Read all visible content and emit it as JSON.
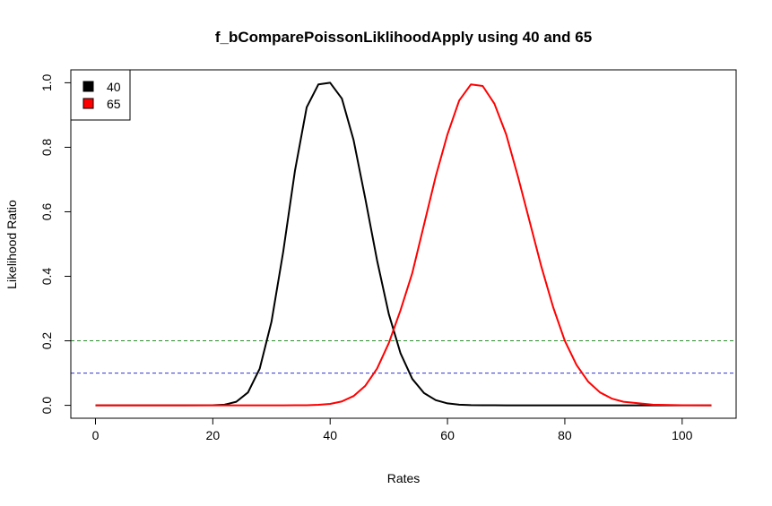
{
  "chart_data": {
    "type": "line",
    "title": "f_bComparePoissonLiklihoodApply using 40 and 65",
    "xlabel": "Rates",
    "ylabel": "Likelihood Ratio",
    "xlim": [
      -4.2,
      109.2
    ],
    "ylim": [
      -0.04,
      1.04
    ],
    "x_ticks": [
      0,
      20,
      40,
      60,
      80,
      100
    ],
    "y_ticks": [
      0.0,
      0.2,
      0.4,
      0.6,
      0.8,
      1.0
    ],
    "x_tick_labels": [
      "0",
      "20",
      "40",
      "60",
      "80",
      "100"
    ],
    "y_tick_labels": [
      "0.0",
      "0.2",
      "0.4",
      "0.6",
      "0.8",
      "1.0"
    ],
    "grid": false,
    "legend": {
      "position": "top-left",
      "entries": [
        {
          "label": "40",
          "color": "#000000"
        },
        {
          "label": "65",
          "color": "#ff0000"
        }
      ]
    },
    "x": [
      0,
      5,
      10,
      15,
      20,
      22,
      24,
      26,
      28,
      30,
      32,
      34,
      36,
      38,
      40,
      42,
      44,
      46,
      48,
      50,
      52,
      54,
      56,
      58,
      60,
      62,
      64,
      66,
      68,
      70,
      72,
      74,
      76,
      78,
      80,
      82,
      84,
      86,
      88,
      90,
      95,
      100,
      105
    ],
    "series": [
      {
        "name": "40",
        "color": "#000000",
        "values": [
          0.0,
          0.0,
          0.0,
          0.0,
          0.0002,
          0.002,
          0.011,
          0.04,
          0.114,
          0.259,
          0.476,
          0.727,
          0.924,
          0.995,
          1.0,
          0.951,
          0.822,
          0.64,
          0.449,
          0.283,
          0.161,
          0.082,
          0.038,
          0.016,
          0.006,
          0.002,
          0.0007,
          0.0002,
          0.0001,
          0.0,
          0.0,
          0.0,
          0.0,
          0.0,
          0.0,
          0.0,
          0.0,
          0.0,
          0.0,
          0.0,
          0.0,
          0.0,
          0.0
        ]
      },
      {
        "name": "65",
        "color": "#ff0000",
        "values": [
          0.0,
          0.0,
          0.0,
          0.0,
          0.0,
          0.0,
          0.0,
          0.0,
          0.0,
          0.0,
          0.0,
          0.0001,
          0.0004,
          0.0015,
          0.0045,
          0.0121,
          0.0288,
          0.0608,
          0.114,
          0.193,
          0.295,
          0.41,
          0.56,
          0.71,
          0.84,
          0.945,
          0.995,
          0.99,
          0.935,
          0.84,
          0.71,
          0.57,
          0.43,
          0.305,
          0.2,
          0.125,
          0.073,
          0.04,
          0.021,
          0.011,
          0.002,
          0.0003,
          0.0
        ]
      }
    ],
    "reference_lines": [
      {
        "orientation": "horizontal",
        "y": 0.2,
        "color": "#2e8b2e",
        "style": "dashed"
      },
      {
        "orientation": "horizontal",
        "y": 0.1,
        "color": "#3333cc",
        "style": "dashed"
      }
    ]
  }
}
